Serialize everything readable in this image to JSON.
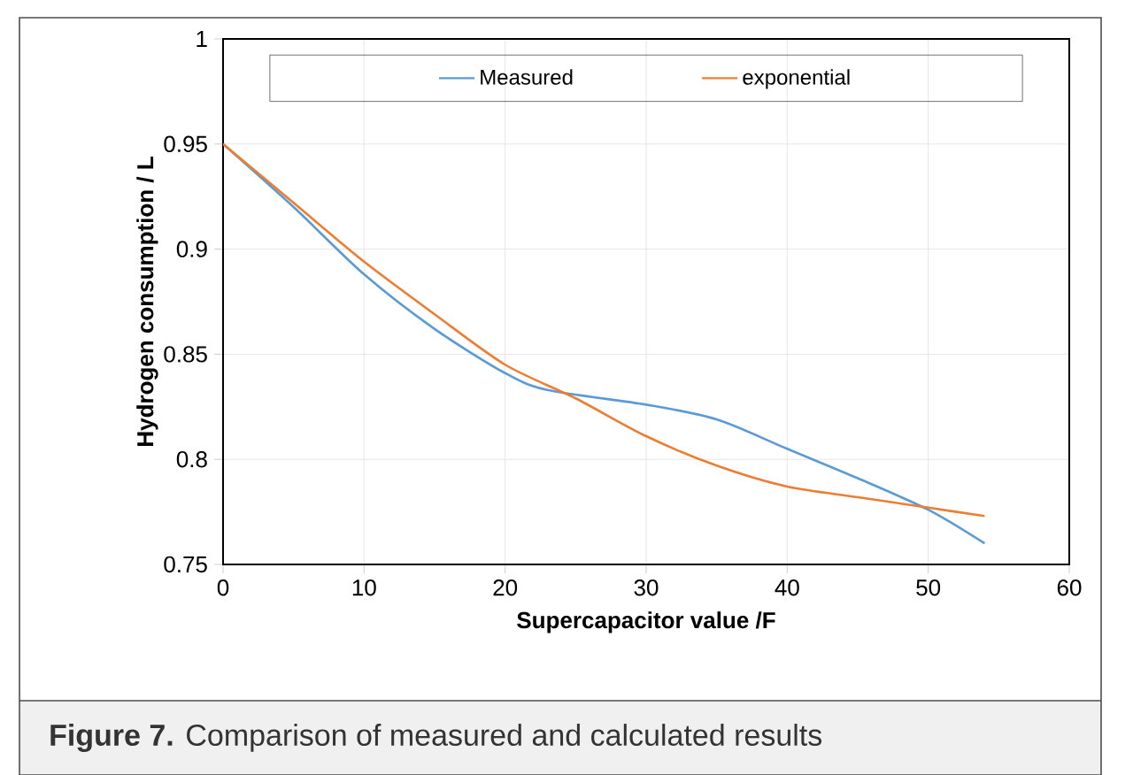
{
  "chart_data": {
    "type": "line",
    "xlabel": "Supercapacitor value /F",
    "ylabel": "Hydrogen consumption / L",
    "annotations": [
      "**Figure 7.** Comparison of measured and calculated results"
    ],
    "xlim": [
      0,
      60
    ],
    "xticks": [
      0,
      10,
      20,
      30,
      40,
      50,
      60
    ],
    "ylim": [
      0.75,
      1
    ],
    "yticks": [
      0.75,
      0.8,
      0.85,
      0.9,
      0.95,
      1
    ],
    "grid": true,
    "legend": "top",
    "line_style": "solid",
    "marker": "none",
    "series": [
      {
        "name": "Measured",
        "color": "#5b9bd5",
        "x": [
          0,
          5,
          10,
          15,
          20,
          23,
          30,
          35,
          40,
          45,
          50,
          54
        ],
        "values": [
          0.95,
          0.92,
          0.888,
          0.862,
          0.841,
          0.833,
          0.826,
          0.819,
          0.805,
          0.791,
          0.776,
          0.76
        ]
      },
      {
        "name": "exponential",
        "color": "#ed7d31",
        "x": [
          0,
          5,
          10,
          15,
          20,
          25,
          30,
          35,
          40,
          45,
          50,
          54
        ],
        "values": [
          0.95,
          0.922,
          0.894,
          0.869,
          0.845,
          0.829,
          0.811,
          0.797,
          0.787,
          0.782,
          0.777,
          0.773
        ]
      }
    ]
  }
}
